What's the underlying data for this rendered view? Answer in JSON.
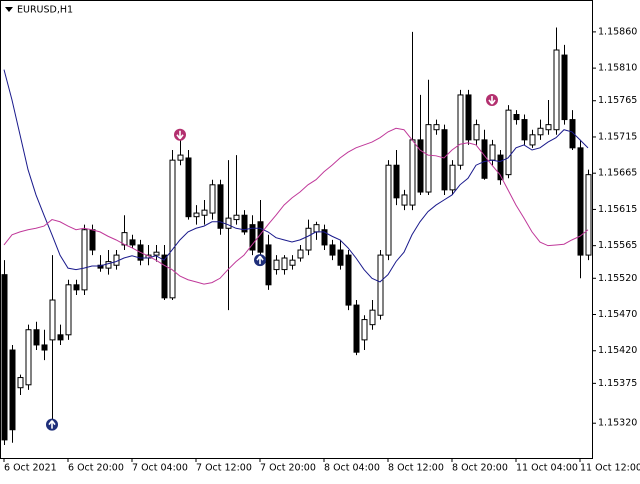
{
  "chart_data": {
    "type": "candlestick",
    "title": "EURUSD,H1",
    "categories": [
      "6 Oct 2021",
      null,
      null,
      null,
      null,
      null,
      null,
      null,
      "6 Oct 20:00",
      null,
      null,
      null,
      null,
      null,
      null,
      null,
      "7 Oct 04:00",
      null,
      null,
      null,
      null,
      null,
      null,
      null,
      "7 Oct 12:00",
      null,
      null,
      null,
      null,
      null,
      null,
      null,
      "7 Oct 20:00",
      null,
      null,
      null,
      null,
      null,
      null,
      null,
      "8 Oct 04:00",
      null,
      null,
      null,
      null,
      null,
      null,
      null,
      "8 Oct 12:00",
      null,
      null,
      null,
      null,
      null,
      null,
      null,
      "8 Oct 20:00",
      null,
      null,
      null,
      null,
      null,
      null,
      null,
      "11 Oct 04:00",
      null,
      null,
      null,
      null,
      null,
      null,
      null,
      "11 Oct 12:00",
      null
    ],
    "open": [
      1.15525,
      1.15421,
      1.15369,
      1.15373,
      1.15449,
      1.15428,
      1.15435,
      1.15442,
      1.15442,
      1.15511,
      1.15504,
      1.15587,
      1.15538,
      1.15534,
      1.15538,
      1.15566,
      1.15573,
      1.15566,
      1.15548,
      1.15552,
      1.15552,
      1.15493,
      1.15683,
      1.15686,
      1.15605,
      1.15607,
      1.1561,
      1.15649,
      1.15589,
      1.15601,
      1.15607,
      1.15594,
      1.15598,
      1.15566,
      1.15532,
      1.15532,
      1.15538,
      1.15548,
      1.15559,
      1.15584,
      1.15587,
      1.15566,
      1.15559,
      1.15552,
      1.15483,
      1.15435,
      1.15456,
      1.15469,
      1.15552,
      1.15676,
      1.15621,
      1.15621,
      1.15711,
      1.15639,
      1.15725,
      1.15725,
      1.15642,
      1.15676,
      1.15773,
      1.15711,
      1.15711,
      1.15683,
      1.1569,
      1.15663,
      1.15746,
      1.15739,
      1.15704,
      1.15718,
      1.15725,
      1.15725,
      1.15828,
      1.15739,
      1.157,
      1.15552
    ],
    "high": [
      1.15545,
      1.15428,
      1.15387,
      1.15456,
      1.1546,
      1.15449,
      1.15552,
      1.15456,
      1.15518,
      1.15518,
      1.15594,
      1.15594,
      1.15552,
      1.15559,
      1.15559,
      1.15607,
      1.1558,
      1.15573,
      1.15566,
      1.15566,
      1.15566,
      1.15697,
      1.15711,
      1.15697,
      1.15621,
      1.15628,
      1.15656,
      1.15656,
      1.15683,
      1.1569,
      1.15614,
      1.15607,
      1.15628,
      1.1558,
      1.15552,
      1.15552,
      1.15552,
      1.15566,
      1.15601,
      1.15598,
      1.15594,
      1.15573,
      1.15573,
      1.15559,
      1.1549,
      1.15469,
      1.1549,
      1.15559,
      1.15683,
      1.15697,
      1.15642,
      1.1586,
      1.15773,
      1.15794,
      1.15739,
      1.15732,
      1.15683,
      1.1578,
      1.1578,
      1.15739,
      1.15725,
      1.15711,
      1.15697,
      1.15759,
      1.15752,
      1.15746,
      1.15725,
      1.15739,
      1.15766,
      1.15866,
      1.15842,
      1.15752,
      1.15711,
      1.1567
    ],
    "low": [
      1.1529,
      1.15293,
      1.15359,
      1.15366,
      1.15421,
      1.15407,
      1.15325,
      1.15428,
      1.15435,
      1.15497,
      1.15497,
      1.15552,
      1.15529,
      1.15525,
      1.15532,
      1.15559,
      1.15562,
      1.15538,
      1.15538,
      1.15543,
      1.1549,
      1.1549,
      1.15676,
      1.15601,
      1.15594,
      1.15594,
      1.15601,
      1.1558,
      1.15476,
      1.15594,
      1.1558,
      1.15552,
      1.15548,
      1.15504,
      1.15525,
      1.15525,
      1.15532,
      1.15543,
      1.15552,
      1.15573,
      1.15559,
      1.15545,
      1.15532,
      1.15476,
      1.15414,
      1.15421,
      1.15449,
      1.15463,
      1.15545,
      1.15621,
      1.15614,
      1.15614,
      1.15635,
      1.15635,
      1.15718,
      1.15635,
      1.15635,
      1.1567,
      1.15704,
      1.15704,
      1.15656,
      1.15676,
      1.15649,
      1.15658,
      1.15732,
      1.15704,
      1.157,
      1.15711,
      1.15718,
      1.15718,
      1.15732,
      1.15697,
      1.1552,
      1.15545
    ],
    "close": [
      1.15297,
      1.15311,
      1.15383,
      1.15449,
      1.15428,
      1.15421,
      1.1549,
      1.15435,
      1.15511,
      1.15504,
      1.15587,
      1.15559,
      1.15534,
      1.15543,
      1.15552,
      1.15583,
      1.15566,
      1.15545,
      1.15552,
      1.15556,
      1.15493,
      1.15683,
      1.1569,
      1.15605,
      1.1561,
      1.15614,
      1.15649,
      1.15589,
      1.15603,
      1.15607,
      1.15584,
      1.15559,
      1.15556,
      1.15511,
      1.15545,
      1.15548,
      1.15545,
      1.15559,
      1.15589,
      1.15594,
      1.15566,
      1.15552,
      1.15538,
      1.15483,
      1.15418,
      1.15463,
      1.15476,
      1.15552,
      1.15676,
      1.15631,
      1.15635,
      1.15711,
      1.15639,
      1.15732,
      1.15732,
      1.15642,
      1.15676,
      1.15773,
      1.15711,
      1.15732,
      1.15658,
      1.15704,
      1.15656,
      1.15752,
      1.15739,
      1.15711,
      1.15718,
      1.15727,
      1.15732,
      1.15835,
      1.15739,
      1.157,
      1.15552,
      1.15663
    ],
    "up_color": "#ffffff",
    "down_color": "#000000",
    "wick_color": "#000000",
    "overlays": [
      {
        "color": "#1a1a8c",
        "values": [
          1.15808,
          1.15766,
          1.15718,
          1.1567,
          1.15635,
          1.15607,
          1.1558,
          1.15552,
          1.15534,
          1.15532,
          1.15534,
          1.15537,
          1.15537,
          1.1554,
          1.15543,
          1.15548,
          1.15551,
          1.15548,
          1.15548,
          1.15551,
          1.15545,
          1.15559,
          1.15573,
          1.15584,
          1.15589,
          1.15592,
          1.15598,
          1.15598,
          1.15594,
          1.15589,
          1.15587,
          1.15589,
          1.15589,
          1.15584,
          1.15576,
          1.15573,
          1.1557,
          1.15573,
          1.15578,
          1.15584,
          1.15584,
          1.15578,
          1.15573,
          1.15562,
          1.15548,
          1.15532,
          1.1552,
          1.15515,
          1.15525,
          1.15543,
          1.15556,
          1.1558,
          1.15598,
          1.15612,
          1.15621,
          1.15628,
          1.15635,
          1.15649,
          1.15658,
          1.15676,
          1.15681,
          1.15683,
          1.15681,
          1.15686,
          1.157,
          1.15704,
          1.15697,
          1.157,
          1.15708,
          1.15714,
          1.15725,
          1.15722,
          1.15711,
          1.157
        ]
      },
      {
        "color": "#c0399a",
        "values": [
          1.15566,
          1.1558,
          1.15584,
          1.15587,
          1.15589,
          1.15592,
          1.15601,
          1.15598,
          1.15592,
          1.15587,
          1.15589,
          1.15587,
          1.15584,
          1.15578,
          1.15573,
          1.15567,
          1.15562,
          1.15556,
          1.15551,
          1.15545,
          1.15538,
          1.15532,
          1.15523,
          1.15518,
          1.15515,
          1.15512,
          1.15514,
          1.1552,
          1.15532,
          1.15543,
          1.15552,
          1.15566,
          1.1558,
          1.15594,
          1.15607,
          1.15621,
          1.15631,
          1.15639,
          1.15649,
          1.15656,
          1.15667,
          1.15676,
          1.15686,
          1.15694,
          1.157,
          1.15704,
          1.15708,
          1.15714,
          1.15722,
          1.15727,
          1.15725,
          1.15711,
          1.15697,
          1.1569,
          1.15689,
          1.15686,
          1.15697,
          1.15705,
          1.15707,
          1.15704,
          1.1569,
          1.15676,
          1.15663,
          1.15642,
          1.15621,
          1.15603,
          1.15584,
          1.1557,
          1.15565,
          1.15566,
          1.15567,
          1.15573,
          1.15578,
          1.15587
        ]
      }
    ],
    "signals": [
      {
        "direction": "up",
        "color": "#1f2f7a",
        "values": [
          null,
          null,
          null,
          null,
          null,
          null,
          1.15318,
          null,
          null,
          null,
          null,
          null,
          null,
          null,
          null,
          null,
          null,
          null,
          null,
          null,
          null,
          null,
          null,
          null,
          null,
          null,
          null,
          null,
          null,
          null,
          null,
          null,
          1.15545,
          null,
          null,
          null,
          null,
          null,
          null,
          null,
          null,
          null,
          null,
          null,
          null,
          null,
          null,
          null,
          null,
          null,
          null,
          null,
          null,
          null,
          null,
          null,
          null,
          null,
          null,
          null,
          null,
          null,
          null,
          null,
          null,
          null,
          null,
          null,
          null,
          null,
          null,
          null,
          null,
          null
        ]
      },
      {
        "direction": "down",
        "color": "#b3306f",
        "values": [
          null,
          null,
          null,
          null,
          null,
          null,
          null,
          null,
          null,
          null,
          null,
          null,
          null,
          null,
          null,
          null,
          null,
          null,
          null,
          null,
          null,
          null,
          1.15718,
          null,
          null,
          null,
          null,
          null,
          null,
          null,
          null,
          null,
          null,
          null,
          null,
          null,
          null,
          null,
          null,
          null,
          null,
          null,
          null,
          null,
          null,
          null,
          null,
          null,
          null,
          null,
          null,
          null,
          null,
          null,
          null,
          null,
          null,
          null,
          null,
          null,
          null,
          1.15766,
          null,
          null,
          null,
          null,
          null,
          null,
          null,
          null,
          null,
          null,
          null,
          null
        ]
      }
    ],
    "ylim": [
      1.15272,
      1.15904
    ],
    "yticks": [
      {
        "value": 1.1586,
        "label": "1.15860"
      },
      {
        "value": 1.1581,
        "label": "1.15810"
      },
      {
        "value": 1.15765,
        "label": "1.15765"
      },
      {
        "value": 1.15715,
        "label": "1.15715"
      },
      {
        "value": 1.15665,
        "label": "1.15665"
      },
      {
        "value": 1.15615,
        "label": "1.15615"
      },
      {
        "value": 1.15565,
        "label": "1.15565"
      },
      {
        "value": 1.1552,
        "label": "1.15520"
      },
      {
        "value": 1.1547,
        "label": "1.15470"
      },
      {
        "value": 1.1542,
        "label": "1.15420"
      },
      {
        "value": 1.15375,
        "label": "1.15375"
      },
      {
        "value": 1.1532,
        "label": "1.15320"
      }
    ],
    "grid": false
  }
}
